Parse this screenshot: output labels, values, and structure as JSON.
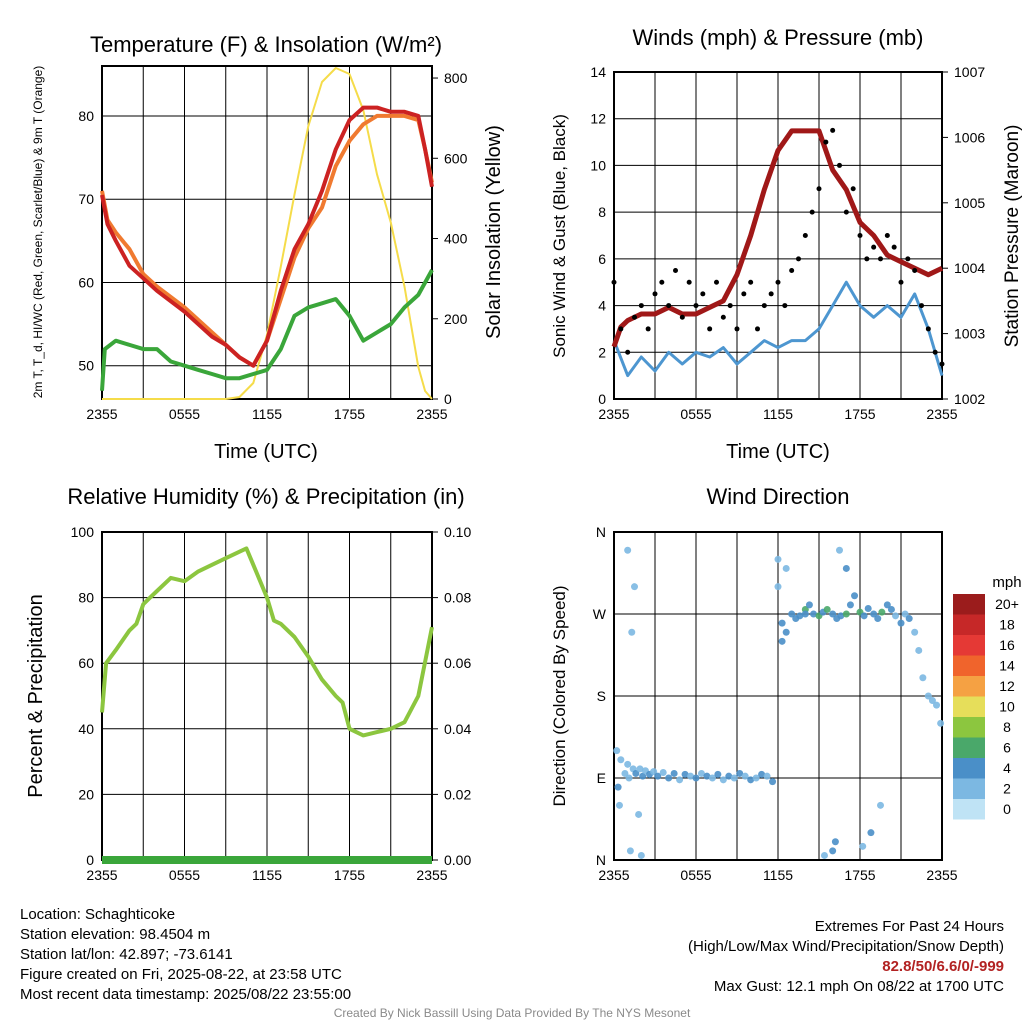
{
  "colors": {
    "temperature": "#cc2222",
    "heat_index_windchill": "#f07a30",
    "dewpoint": "#3aa63a",
    "insolation": "#f5dc4a",
    "wind": "#4d96d0",
    "gust": "#000000",
    "pressure": "#a01818",
    "humidity": "#8cc63f",
    "precipitation": "#3aa63a"
  },
  "speed_legend": {
    "title": "mph",
    "labels": [
      "20+",
      "18",
      "16",
      "14",
      "12",
      "10",
      "8",
      "6",
      "4",
      "2",
      "0"
    ],
    "colors": [
      "#9b1c1c",
      "#c62828",
      "#e53935",
      "#f0642c",
      "#f5a143",
      "#e6de5a",
      "#8cc63f",
      "#4aa86a",
      "#4a8fc8",
      "#7cb8e2",
      "#bfe3f5"
    ]
  },
  "chart_data": [
    {
      "type": "line",
      "title": "Temperature (F) & Insolation (W/m²)",
      "xlabel": "Time (UTC)",
      "ylabel": "2m T, T_d, HI/WC (Red, Green, Scarlet/Blue) & 9m T (Orange)",
      "ylabel_right": "Solar Insolation (Yellow)",
      "x_tick_labels": [
        "2355",
        "0555",
        "1155",
        "1755",
        "2355"
      ],
      "ylim": [
        46,
        86
      ],
      "yticks": [
        50,
        60,
        70,
        80
      ],
      "y2lim": [
        0,
        830
      ],
      "y2ticks": [
        0,
        200,
        400,
        600,
        800
      ],
      "xlim": [
        0,
        24
      ],
      "grid": true,
      "series": [
        {
          "axis": "left",
          "x": [
            0,
            0.4,
            1,
            2,
            3,
            4,
            6,
            8,
            9,
            10,
            11,
            12,
            13,
            14,
            15,
            16,
            17,
            18,
            19,
            20,
            21,
            22,
            23,
            23.5,
            24
          ],
          "values": [
            70.5,
            67,
            65,
            62,
            60.5,
            59,
            56.5,
            53.5,
            52.5,
            51,
            50,
            53,
            59,
            64,
            67,
            71,
            76,
            79.5,
            81,
            81,
            80.5,
            80.5,
            80,
            76,
            71.5
          ]
        },
        {
          "axis": "left",
          "x": [
            0,
            0.4,
            1,
            2,
            3,
            4,
            6,
            8,
            9,
            10,
            11,
            12,
            13,
            14,
            15,
            16,
            17,
            18,
            19,
            20,
            21,
            22,
            23,
            23.5,
            24
          ],
          "values": [
            71,
            67.5,
            66,
            64,
            61,
            59.5,
            57,
            54,
            52.5,
            51,
            50,
            53,
            58,
            63,
            66.5,
            69,
            74,
            77,
            79,
            80,
            80,
            80,
            79.5,
            76,
            72
          ]
        },
        {
          "axis": "left",
          "x": [
            0,
            0.2,
            1,
            2,
            3,
            4,
            5,
            6,
            7,
            8,
            9,
            10,
            11,
            12,
            13,
            14,
            15,
            16,
            17,
            18,
            19,
            20,
            21,
            22,
            23,
            24
          ],
          "values": [
            47,
            52,
            53,
            52.5,
            52,
            52,
            50.5,
            50,
            49.5,
            49,
            48.5,
            48.5,
            49,
            49.5,
            52,
            56,
            57,
            57.5,
            58,
            56,
            53,
            54,
            55,
            57,
            58.5,
            61.5
          ]
        },
        {
          "axis": "right",
          "x": [
            0,
            9,
            10,
            11,
            12,
            13,
            14,
            15,
            16,
            17,
            18,
            19,
            20,
            21,
            22,
            23,
            23.5,
            24
          ],
          "values": [
            0,
            0,
            5,
            40,
            160,
            330,
            510,
            680,
            790,
            825,
            810,
            720,
            560,
            440,
            280,
            80,
            20,
            0
          ]
        }
      ]
    },
    {
      "type": "line",
      "title": "Winds (mph) & Pressure (mb)",
      "xlabel": "Time (UTC)",
      "ylabel": "Sonic Wind & Gust (Blue, Black)",
      "ylabel_right": "Station Pressure (Maroon)",
      "x_tick_labels": [
        "2355",
        "0555",
        "1155",
        "1755",
        "2355"
      ],
      "ylim": [
        0,
        14
      ],
      "yticks": [
        0,
        2,
        4,
        6,
        8,
        10,
        12,
        14
      ],
      "y2lim": [
        1002,
        1007
      ],
      "y2ticks": [
        1002,
        1003,
        1004,
        1005,
        1006,
        1007
      ],
      "xlim": [
        0,
        24
      ],
      "grid": true,
      "series": [
        {
          "axis": "left",
          "x": [
            0,
            1,
            2,
            3,
            4,
            5,
            6,
            7,
            8,
            9,
            10,
            11,
            12,
            13,
            14,
            15,
            16,
            17,
            18,
            19,
            20,
            21,
            22,
            23,
            24
          ],
          "values": [
            2.5,
            1,
            1.8,
            1.2,
            2,
            1.5,
            2,
            1.8,
            2.2,
            1.5,
            2,
            2.5,
            2.2,
            2.5,
            2.5,
            3,
            4,
            5,
            4,
            3.5,
            4,
            3.5,
            4.5,
            3,
            1
          ]
        },
        {
          "axis": "left",
          "x": [
            0,
            0.5,
            1,
            1.5,
            2,
            2.5,
            3,
            3.5,
            4,
            4.5,
            5,
            5.5,
            6,
            6.5,
            7,
            7.5,
            8,
            8.5,
            9,
            9.5,
            10,
            10.5,
            11,
            11.5,
            12,
            12.5,
            13,
            13.5,
            14,
            14.5,
            15,
            15.5,
            16,
            16.5,
            17,
            17.5,
            18,
            18.5,
            19,
            19.5,
            20,
            20.5,
            21,
            21.5,
            22,
            22.5,
            23,
            23.5,
            24
          ],
          "values": [
            5,
            3,
            2,
            3.5,
            4,
            3,
            4.5,
            5,
            4,
            5.5,
            3.5,
            5,
            4,
            4.5,
            3,
            5,
            3.5,
            4,
            3,
            4.5,
            5,
            3,
            4,
            4.5,
            5,
            4,
            5.5,
            6,
            7,
            8,
            9,
            11,
            11.5,
            10,
            8,
            9,
            7,
            6,
            6.5,
            6,
            7,
            6.5,
            5,
            6,
            5.5,
            4,
            3,
            2,
            1.5
          ]
        },
        {
          "axis": "right",
          "x": [
            0,
            0.5,
            1,
            2,
            3,
            4,
            5,
            6,
            7,
            8,
            9,
            10,
            11,
            12,
            13,
            14,
            15,
            16,
            17,
            18,
            19,
            20,
            21,
            22,
            23,
            24
          ],
          "values": [
            1002.8,
            1003.1,
            1003.2,
            1003.3,
            1003.3,
            1003.4,
            1003.3,
            1003.3,
            1003.4,
            1003.5,
            1003.9,
            1004.5,
            1005.2,
            1005.8,
            1006.1,
            1006.1,
            1006.1,
            1005.5,
            1005.2,
            1004.7,
            1004.5,
            1004.2,
            1004.1,
            1004.0,
            1003.9,
            1004.0
          ]
        }
      ]
    },
    {
      "type": "line",
      "title": "Relative Humidity (%) & Precipitation (in)",
      "xlabel": "",
      "ylabel": "Percent & Precipitation",
      "x_tick_labels": [
        "2355",
        "0555",
        "1155",
        "1755",
        "2355"
      ],
      "ylim": [
        0,
        100
      ],
      "yticks": [
        0,
        20,
        40,
        60,
        80,
        100
      ],
      "y2lim": [
        0,
        0.1
      ],
      "y2tick_labels": [
        "0.00",
        "0.02",
        "0.04",
        "0.06",
        "0.08",
        "0.10"
      ],
      "xlim": [
        0,
        24
      ],
      "grid": true,
      "series": [
        {
          "axis": "left",
          "x": [
            0,
            0.3,
            1,
            2,
            2.5,
            3,
            3.5,
            4,
            5,
            6,
            7,
            8,
            9,
            10,
            10.5,
            11,
            12,
            12.5,
            13,
            14,
            15,
            16,
            17,
            17.5,
            18,
            19,
            20,
            21,
            22,
            23,
            24
          ],
          "values": [
            45,
            60,
            64,
            70,
            72,
            78,
            80,
            82,
            86,
            85,
            88,
            90,
            92,
            94,
            95,
            90,
            80,
            73,
            72,
            68,
            62,
            55,
            50,
            48,
            40,
            38,
            39,
            40,
            42,
            50,
            71
          ]
        },
        {
          "axis": "right",
          "x": [
            0,
            24
          ],
          "values": [
            0,
            0
          ]
        }
      ]
    },
    {
      "type": "scatter",
      "title": "Wind Direction",
      "ylabel": "Direction (Colored By Speed)",
      "x_tick_labels": [
        "2355",
        "0555",
        "1155",
        "1755",
        "2355"
      ],
      "ylim": [
        0,
        360
      ],
      "ytick_labels": [
        "N",
        "E",
        "S",
        "W",
        "N"
      ],
      "xlim": [
        0,
        24
      ],
      "grid": true,
      "points_x": [
        0.3,
        0.5,
        0.8,
        1.0,
        1.1,
        1.4,
        1.6,
        1.9,
        2.1,
        2.3,
        2.6,
        2.9,
        3.2,
        3.6,
        4.0,
        4.4,
        4.8,
        5.2,
        5.6,
        6.0,
        6.4,
        6.8,
        7.2,
        7.6,
        8.0,
        8.4,
        8.8,
        9.2,
        9.6,
        10.0,
        10.4,
        10.8,
        11.2,
        11.6,
        1.0,
        1.3,
        1.5,
        0.2,
        0.4,
        1.2,
        1.8,
        2.0,
        12.0,
        12.3,
        12.6,
        13.0,
        13.3,
        13.6,
        14.0,
        14.3,
        14.6,
        15.0,
        15.3,
        15.6,
        16.0,
        16.3,
        16.6,
        17.0,
        17.3,
        17.6,
        18.0,
        18.3,
        18.6,
        19.0,
        19.3,
        19.6,
        20.0,
        20.3,
        20.6,
        21.0,
        21.3,
        21.6,
        22.0,
        22.3,
        22.6,
        23.0,
        23.3,
        23.6,
        23.9,
        15.4,
        16.0,
        16.5,
        18.8,
        18.2,
        19.5,
        17.0,
        12.3,
        12.6,
        12.0,
        14.0,
        16.2
      ],
      "points_y": [
        80,
        110,
        95,
        105,
        90,
        100,
        95,
        100,
        92,
        98,
        94,
        97,
        92,
        96,
        90,
        95,
        88,
        94,
        92,
        90,
        95,
        92,
        90,
        94,
        88,
        92,
        90,
        95,
        92,
        88,
        90,
        94,
        92,
        86,
        340,
        250,
        300,
        120,
        60,
        10,
        50,
        5,
        330,
        240,
        250,
        270,
        265,
        268,
        275,
        280,
        270,
        268,
        272,
        275,
        270,
        265,
        268,
        270,
        280,
        290,
        272,
        268,
        276,
        270,
        265,
        272,
        280,
        275,
        268,
        260,
        270,
        265,
        250,
        230,
        200,
        180,
        175,
        170,
        150,
        5,
        10,
        340,
        30,
        15,
        60,
        320,
        260,
        320,
        300,
        270,
        20
      ],
      "points_speed": [
        3,
        2,
        2,
        1,
        2,
        2,
        3,
        2,
        3,
        2,
        3,
        2,
        3,
        2,
        3,
        3,
        2,
        3,
        2,
        3,
        2,
        3,
        2,
        3,
        2,
        3,
        2,
        3,
        2,
        3,
        2,
        3,
        2,
        3,
        1,
        1,
        1,
        1,
        1,
        2,
        1,
        1,
        2,
        3,
        3,
        3,
        4,
        3,
        5,
        4,
        3,
        6,
        4,
        5,
        4,
        3,
        4,
        5,
        4,
        3,
        5,
        4,
        3,
        4,
        3,
        5,
        4,
        3,
        2,
        3,
        2,
        3,
        2,
        1,
        1,
        1,
        1,
        1,
        1,
        2,
        3,
        2,
        3,
        2,
        2,
        4,
        3,
        2,
        1,
        3,
        3
      ]
    }
  ],
  "footer": {
    "location": "Location: Schaghticoke",
    "elevation": "Station elevation: 98.4504 m",
    "latlon": "Station lat/lon: 42.897; -73.6141",
    "created": "Figure created on Fri, 2025-08-22, at 23:58 UTC",
    "recent": "Most recent data timestamp: 2025/08/22 23:55:00",
    "extremes_title": "Extremes For Past 24 Hours",
    "extremes_desc": "(High/Low/Max Wind/Precipitation/Snow Depth)",
    "extremes_values": "82.8/50/6.6/0/-999",
    "max_gust": "Max Gust: 12.1 mph On 08/22 at 1700 UTC",
    "credit": "Created By Nick Bassill Using Data Provided By The NYS Mesonet"
  }
}
